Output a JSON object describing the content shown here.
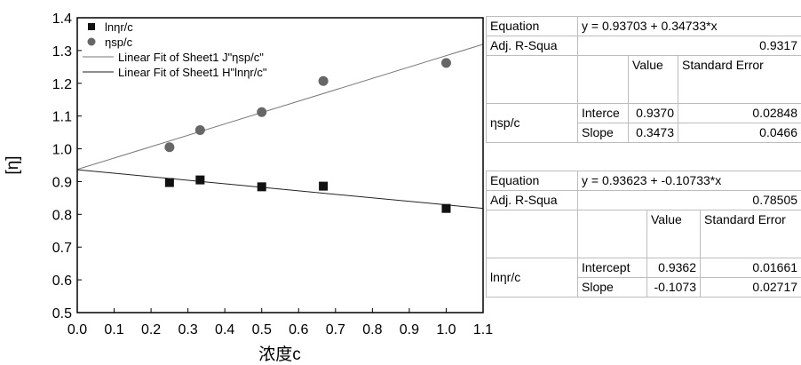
{
  "chart_data": {
    "type": "scatter",
    "xlabel": "浓度c",
    "ylabel": "[η]",
    "xlim": [
      0.0,
      1.1
    ],
    "ylim": [
      0.5,
      1.4
    ],
    "xticks": [
      "0.0",
      "0.1",
      "0.2",
      "0.3",
      "0.4",
      "0.5",
      "0.6",
      "0.7",
      "0.8",
      "0.9",
      "1.0",
      "1.1"
    ],
    "yticks": [
      "0.5",
      "0.6",
      "0.7",
      "0.8",
      "0.9",
      "1.0",
      "1.1",
      "1.2",
      "1.3",
      "1.4"
    ],
    "legend_position": "top-left",
    "legend": [
      "lnηr/c",
      "ηsp/c",
      "Linear Fit of Sheet1 J\"ηsp/c\"",
      "Linear Fit of Sheet1 H\"lnηr/c\""
    ],
    "series": [
      {
        "name": "lnηr/c",
        "marker": "square",
        "color": "#111111",
        "x": [
          0.25,
          0.333,
          0.5,
          0.667,
          1.0
        ],
        "y": [
          0.897,
          0.905,
          0.884,
          0.886,
          0.818
        ]
      },
      {
        "name": "ηsp/c",
        "marker": "circle",
        "color": "#666666",
        "x": [
          0.25,
          0.333,
          0.5,
          0.667,
          1.0
        ],
        "y": [
          1.005,
          1.057,
          1.112,
          1.207,
          1.262
        ]
      },
      {
        "name": "Linear Fit of Sheet1 J\"ηsp/c\"",
        "type": "line",
        "color": "#777777",
        "intercept": 0.93703,
        "slope": 0.34733,
        "x": [
          0.0,
          1.1
        ]
      },
      {
        "name": "Linear Fit of Sheet1 H\"lnηr/c\"",
        "type": "line",
        "color": "#222222",
        "intercept": 0.93623,
        "slope": -0.10733,
        "x": [
          0.0,
          1.1
        ]
      }
    ]
  },
  "fit_tables": [
    {
      "equation_label": "Equation",
      "equation": "y = 0.93703 + 0.34733*x",
      "r2_label": "Adj. R-Squa",
      "r2": "0.9317",
      "value_header": "Value",
      "stderr_header": "Standard Error",
      "series_label": "ηsp/c",
      "rows": [
        {
          "name": "Interce",
          "value": "0.9370",
          "stderr": "0.02848"
        },
        {
          "name": "Slope",
          "value": "0.3473",
          "stderr": "0.0466"
        }
      ]
    },
    {
      "equation_label": "Equation",
      "equation": "y = 0.93623 + -0.10733*x",
      "r2_label": "Adj. R-Squa",
      "r2": "0.78505",
      "value_header": "Value",
      "stderr_header": "Standard Error",
      "series_label": "lnηr/c",
      "rows": [
        {
          "name": "Intercept",
          "value": "0.9362",
          "stderr": "0.01661"
        },
        {
          "name": "Slope",
          "value": "-0.1073",
          "stderr": "0.02717"
        }
      ]
    }
  ]
}
